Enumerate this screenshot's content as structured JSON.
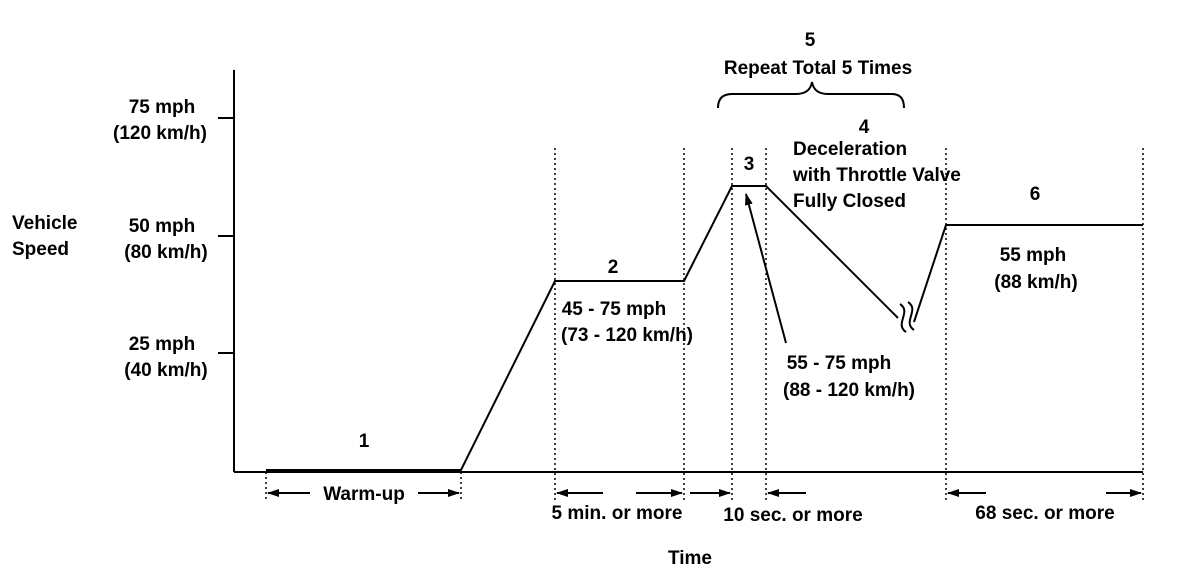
{
  "diagram": {
    "y_axis_label": [
      "Vehicle",
      "Speed"
    ],
    "x_axis_label": "Time",
    "y_ticks": [
      {
        "mph": "75 mph",
        "kmh": "(120 km/h)"
      },
      {
        "mph": "50 mph",
        "kmh": "(80 km/h)"
      },
      {
        "mph": "25 mph",
        "kmh": "(40 km/h)"
      }
    ],
    "phases": [
      {
        "number": "1"
      },
      {
        "number": "2",
        "speed": [
          "45 - 75 mph",
          "(73 - 120 km/h)"
        ]
      },
      {
        "number": "3"
      },
      {
        "number": "4",
        "description": [
          "Deceleration",
          "with Throttle Valve",
          "Fully Closed"
        ]
      },
      {
        "number": "5",
        "description": "Repeat Total 5 Times"
      },
      {
        "number": "6",
        "speed": [
          "55 mph",
          "(88 km/h)"
        ]
      }
    ],
    "phase3_speed": [
      "55 - 75 mph",
      "(88 - 120 km/h)"
    ],
    "durations": [
      "Warm-up",
      "5 min. or more",
      "10 sec. or more",
      "68 sec. or more"
    ]
  }
}
